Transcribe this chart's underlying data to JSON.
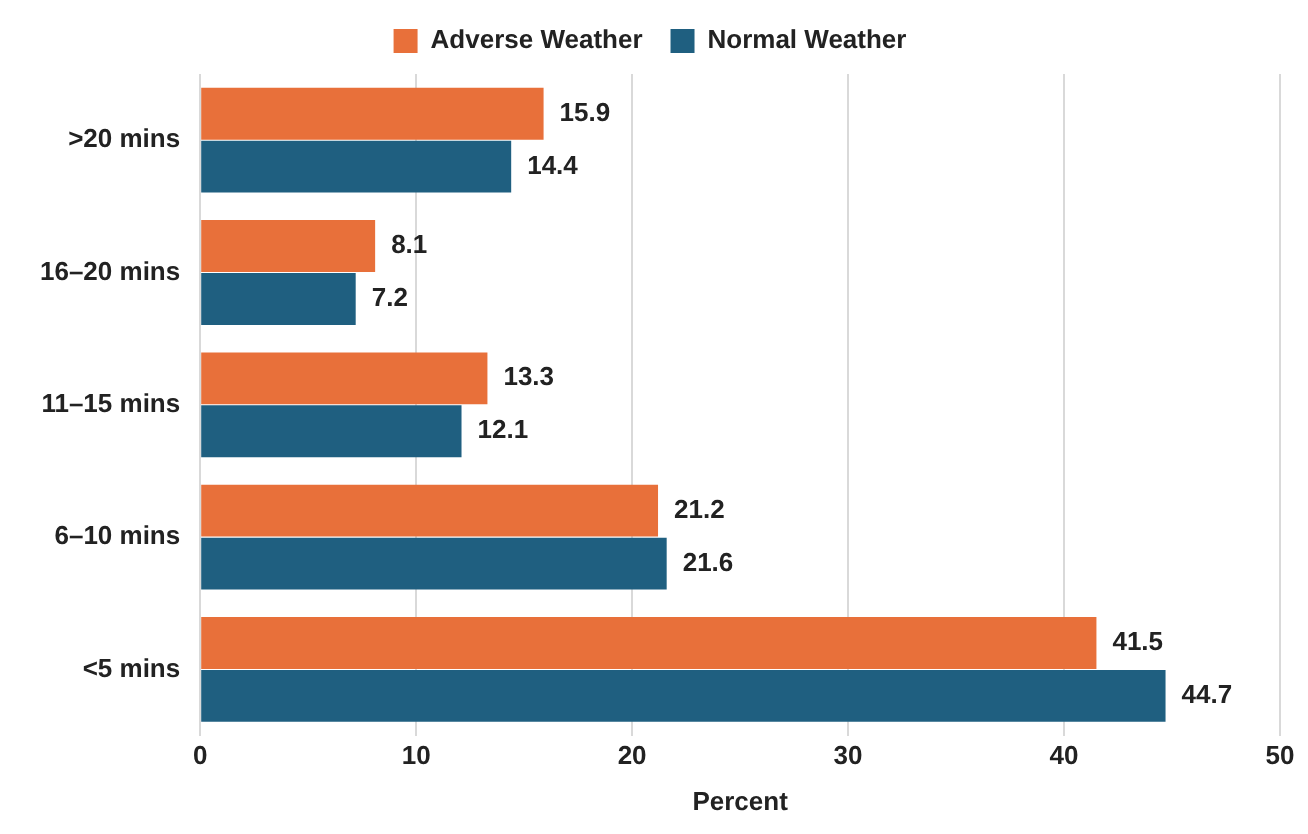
{
  "chart_data": {
    "type": "bar",
    "orientation": "horizontal",
    "xlabel": "Percent",
    "categories": [
      ">20 mins",
      "16–20 mins",
      "11–15 mins",
      "6–10 mins",
      "<5 mins"
    ],
    "series": [
      {
        "name": "Adverse Weather",
        "color": "#e8703a",
        "values": [
          15.9,
          8.1,
          13.3,
          21.2,
          41.5
        ]
      },
      {
        "name": "Normal Weather",
        "color": "#1f5f80",
        "values": [
          14.4,
          7.2,
          12.1,
          21.6,
          44.7
        ]
      }
    ],
    "xlim": [
      0,
      50
    ],
    "xticks": [
      0,
      10,
      20,
      30,
      40,
      50
    ],
    "grid": "x",
    "legend": "top",
    "data_labels": true
  }
}
